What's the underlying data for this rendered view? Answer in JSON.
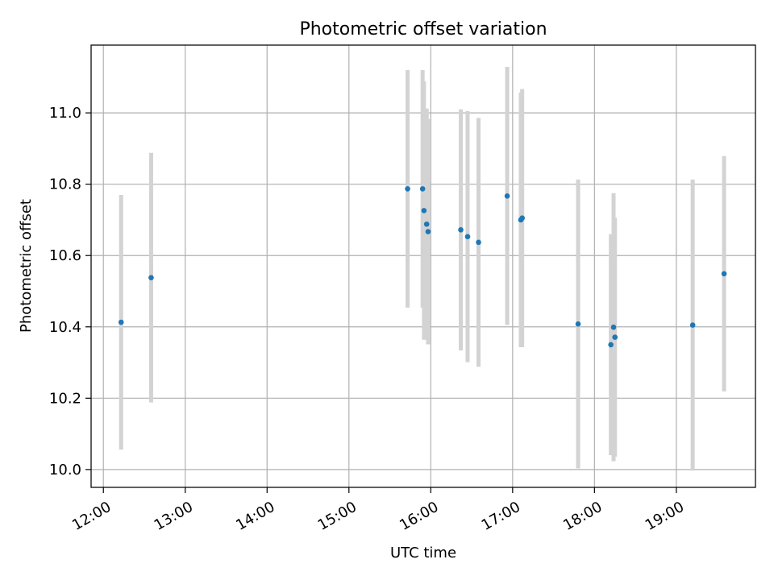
{
  "chart_data": {
    "type": "scatter",
    "title": "Photometric offset variation",
    "xlabel": "UTC time",
    "ylabel": "Photometric offset",
    "x_ticks": [
      "12:00",
      "13:00",
      "14:00",
      "15:00",
      "16:00",
      "17:00",
      "18:00",
      "19:00"
    ],
    "y_ticks": [
      "10.0",
      "10.2",
      "10.4",
      "10.6",
      "10.8",
      "11.0"
    ],
    "xlim": [
      "11:51",
      "19:58"
    ],
    "ylim": [
      9.95,
      11.19
    ],
    "grid": true,
    "series": [
      {
        "marker_color": "#1f77b4",
        "error_color": "#d3d3d3",
        "points": [
          {
            "x": "12:13",
            "y": 10.413,
            "yerr": 0.357
          },
          {
            "x": "12:35",
            "y": 10.538,
            "yerr": 0.35
          },
          {
            "x": "15:43",
            "y": 10.787,
            "yerr": 0.333
          },
          {
            "x": "15:54",
            "y": 10.787,
            "yerr": 0.333
          },
          {
            "x": "15:55",
            "y": 10.726,
            "yerr": 0.362
          },
          {
            "x": "15:57",
            "y": 10.688,
            "yerr": 0.324
          },
          {
            "x": "15:58",
            "y": 10.667,
            "yerr": 0.316
          },
          {
            "x": "16:22",
            "y": 10.672,
            "yerr": 0.338
          },
          {
            "x": "16:27",
            "y": 10.653,
            "yerr": 0.352
          },
          {
            "x": "16:35",
            "y": 10.637,
            "yerr": 0.349
          },
          {
            "x": "16:56",
            "y": 10.767,
            "yerr": 0.362
          },
          {
            "x": "17:06",
            "y": 10.7,
            "yerr": 0.357
          },
          {
            "x": "17:07",
            "y": 10.705,
            "yerr": 0.362
          },
          {
            "x": "17:48",
            "y": 10.408,
            "yerr": 0.405
          },
          {
            "x": "18:12",
            "y": 10.35,
            "yerr": 0.31
          },
          {
            "x": "18:14",
            "y": 10.399,
            "yerr": 0.376
          },
          {
            "x": "18:15",
            "y": 10.371,
            "yerr": 0.335
          },
          {
            "x": "19:12",
            "y": 10.405,
            "yerr": 0.408
          },
          {
            "x": "19:35",
            "y": 10.549,
            "yerr": 0.33
          }
        ]
      }
    ]
  }
}
